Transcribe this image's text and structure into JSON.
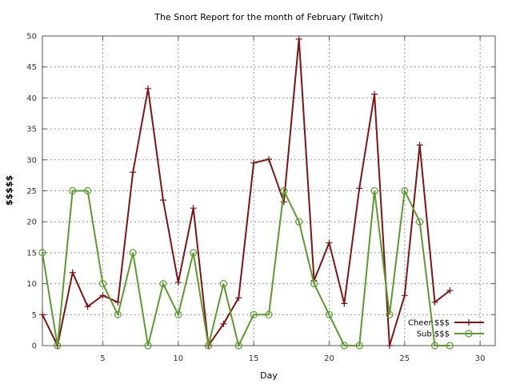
{
  "chart_data": {
    "type": "line",
    "title": "The Snort Report for the month of February (Twitch)",
    "xlabel": "Day",
    "ylabel": "$$$$$",
    "xlim": [
      1,
      31
    ],
    "ylim": [
      0,
      50
    ],
    "xticks": [
      5,
      10,
      15,
      20,
      25,
      30
    ],
    "yticks": [
      0,
      5,
      10,
      15,
      20,
      25,
      30,
      35,
      40,
      45,
      50
    ],
    "grid": true,
    "legend_position": "bottom-right",
    "series": [
      {
        "name": "Cheer $$$",
        "color": "#7f1414",
        "marker": "plus",
        "x": [
          1,
          2,
          3,
          4,
          5,
          6,
          7,
          8,
          9,
          10,
          11,
          12,
          13,
          14,
          15,
          16,
          17,
          18,
          19,
          20,
          21,
          22,
          23,
          24,
          25,
          26,
          27,
          28
        ],
        "values": [
          5,
          0,
          11.8,
          6.3,
          8.1,
          7,
          28,
          41.5,
          23.5,
          10.2,
          22.2,
          0,
          3.5,
          7.7,
          29.5,
          30.1,
          23.2,
          49.5,
          10.5,
          16.6,
          6.8,
          25.4,
          40.6,
          0,
          8.1,
          32.4,
          7,
          8.9
        ]
      },
      {
        "name": "Sub $$$",
        "color": "#5c9a2e",
        "marker": "circle",
        "x": [
          1,
          2,
          3,
          4,
          5,
          6,
          7,
          8,
          9,
          10,
          11,
          12,
          13,
          14,
          15,
          16,
          17,
          18,
          19,
          20,
          21,
          22,
          23,
          24,
          25,
          26,
          27,
          28
        ],
        "values": [
          15,
          0,
          25,
          25,
          10,
          5,
          15,
          0,
          10,
          5,
          15,
          0,
          10,
          0,
          5,
          5,
          25,
          20,
          10,
          5,
          0,
          0,
          25,
          5,
          25,
          20,
          0,
          0
        ]
      }
    ]
  }
}
